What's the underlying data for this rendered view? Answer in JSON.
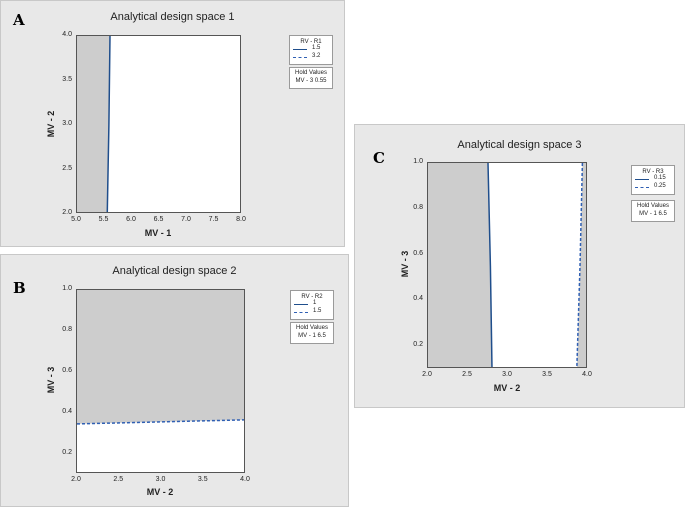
{
  "colors": {
    "panel_bg": "#e8e8e8",
    "infeasible": "#cdcdcd",
    "feasible": "#ffffff",
    "solid_line": "#1f4e8c",
    "dashed_line": "#2f5fb3"
  },
  "panels": {
    "A": {
      "letter": "A",
      "title": "Analytical design space 1",
      "xlabel": "MV - 1",
      "ylabel": "MV - 2",
      "xticks": [
        "5.0",
        "5.5",
        "6.0",
        "6.5",
        "7.0",
        "7.5",
        "8.0"
      ],
      "yticks": [
        "4.0",
        "3.5",
        "3.0",
        "2.5",
        "2.0"
      ],
      "legend": {
        "title": "RV - R1",
        "entries": [
          "1.5",
          "3.2"
        ]
      },
      "hold": {
        "title": "Hold Values",
        "value": "MV - 3  0.55"
      }
    },
    "B": {
      "letter": "B",
      "title": "Analytical design space 2",
      "xlabel": "MV - 2",
      "ylabel": "MV - 3",
      "xticks": [
        "2.0",
        "2.5",
        "3.0",
        "3.5",
        "4.0"
      ],
      "yticks": [
        "1.0",
        "0.8",
        "0.6",
        "0.4",
        "0.2"
      ],
      "legend": {
        "title": "RV - R2",
        "entries": [
          "1",
          "1.5"
        ]
      },
      "hold": {
        "title": "Hold Values",
        "value": "MV - 1  6.5"
      }
    },
    "C": {
      "letter": "C",
      "title": "Analytical design space 3",
      "xlabel": "MV - 2",
      "ylabel": "MV - 3",
      "xticks": [
        "2.0",
        "2.5",
        "3.0",
        "3.5",
        "4.0"
      ],
      "yticks": [
        "1.0",
        "0.8",
        "0.6",
        "0.4",
        "0.2"
      ],
      "legend": {
        "title": "RV - R3",
        "entries": [
          "0.15",
          "0.25"
        ]
      },
      "hold": {
        "title": "Hold Values",
        "value": "MV - 1  6.5"
      }
    }
  },
  "chart_data": [
    {
      "type": "area",
      "title": "Analytical design space 1",
      "xlabel": "MV - 1",
      "ylabel": "MV - 2",
      "xlim": [
        5.0,
        8.0
      ],
      "ylim": [
        2.0,
        4.0
      ],
      "series": [
        {
          "name": "1.5",
          "style": "solid",
          "points": [
            [
              5.6,
              4.0
            ],
            [
              5.58,
              3.0
            ],
            [
              5.55,
              2.0
            ]
          ]
        }
      ],
      "infeasible_region": "left of contour"
    },
    {
      "type": "area",
      "title": "Analytical design space 2",
      "xlabel": "MV - 2",
      "ylabel": "MV - 3",
      "xlim": [
        2.0,
        4.0
      ],
      "ylim": [
        0.1,
        1.0
      ],
      "series": [
        {
          "name": "1.5",
          "style": "dashed",
          "points": [
            [
              2.0,
              0.345
            ],
            [
              2.5,
              0.35
            ],
            [
              3.0,
              0.355
            ],
            [
              3.5,
              0.36
            ],
            [
              4.0,
              0.365
            ]
          ]
        }
      ],
      "infeasible_region": "above contour"
    },
    {
      "type": "area",
      "title": "Analytical design space 3",
      "xlabel": "MV - 2",
      "ylabel": "MV - 3",
      "xlim": [
        2.0,
        4.0
      ],
      "ylim": [
        0.1,
        1.0
      ],
      "series": [
        {
          "name": "0.15",
          "style": "solid",
          "points": [
            [
              2.75,
              1.0
            ],
            [
              2.78,
              0.55
            ],
            [
              2.8,
              0.1
            ]
          ]
        },
        {
          "name": "0.25",
          "style": "dashed",
          "points": [
            [
              3.93,
              1.0
            ],
            [
              3.9,
              0.55
            ],
            [
              3.86,
              0.1
            ]
          ]
        }
      ],
      "infeasible_region": "left of solid contour and right of dashed contour"
    }
  ]
}
